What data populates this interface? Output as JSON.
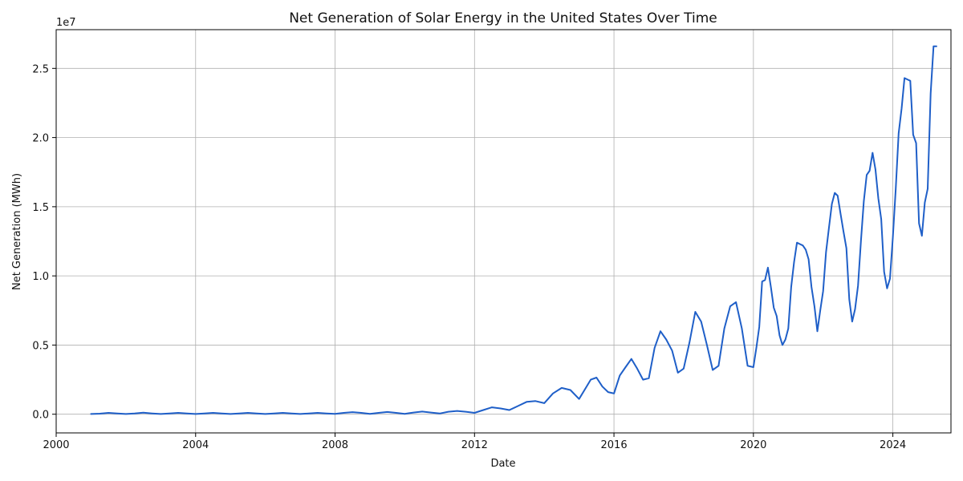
{
  "chart_data": {
    "type": "line",
    "title": "Net Generation of Solar Energy in the United States Over Time",
    "xlabel": "Date",
    "ylabel": "Net Generation (MWh)",
    "y_offset_label": "1e7",
    "y_scale_factor": 10000000,
    "xlim": [
      "2000-01-01",
      "2025-09-01"
    ],
    "ylim": [
      -1350000,
      27800000
    ],
    "grid": true,
    "line_color": "#1f5fc8",
    "x_ticks": [
      "2000",
      "2004",
      "2008",
      "2012",
      "2016",
      "2020",
      "2024"
    ],
    "y_ticks": [
      "0.0",
      "0.5",
      "1.0",
      "1.5",
      "2.0",
      "2.5"
    ],
    "series": [
      {
        "name": "",
        "x": [
          "2001-01",
          "2001-04",
          "2001-07",
          "2001-10",
          "2002-01",
          "2002-04",
          "2002-07",
          "2002-10",
          "2003-01",
          "2003-04",
          "2003-07",
          "2003-10",
          "2004-01",
          "2004-04",
          "2004-07",
          "2004-10",
          "2005-01",
          "2005-04",
          "2005-07",
          "2005-10",
          "2006-01",
          "2006-04",
          "2006-07",
          "2006-10",
          "2007-01",
          "2007-04",
          "2007-07",
          "2007-10",
          "2008-01",
          "2008-04",
          "2008-07",
          "2008-10",
          "2009-01",
          "2009-04",
          "2009-07",
          "2009-10",
          "2010-01",
          "2010-04",
          "2010-07",
          "2010-10",
          "2011-01",
          "2011-04",
          "2011-07",
          "2011-10",
          "2012-01",
          "2012-04",
          "2012-07",
          "2012-10",
          "2013-01",
          "2013-04",
          "2013-07",
          "2013-10",
          "2014-01",
          "2014-04",
          "2014-07",
          "2014-10",
          "2015-01",
          "2015-03",
          "2015-05",
          "2015-07",
          "2015-09",
          "2015-11",
          "2016-01",
          "2016-03",
          "2016-05",
          "2016-07",
          "2016-09",
          "2016-11",
          "2017-01",
          "2017-03",
          "2017-05",
          "2017-07",
          "2017-09",
          "2017-11",
          "2018-01",
          "2018-03",
          "2018-05",
          "2018-07",
          "2018-09",
          "2018-11",
          "2019-01",
          "2019-03",
          "2019-05",
          "2019-07",
          "2019-09",
          "2019-11",
          "2020-01",
          "2020-02",
          "2020-03",
          "2020-04",
          "2020-05",
          "2020-06",
          "2020-07",
          "2020-08",
          "2020-09",
          "2020-10",
          "2020-11",
          "2020-12",
          "2021-01",
          "2021-02",
          "2021-03",
          "2021-04",
          "2021-05",
          "2021-06",
          "2021-07",
          "2021-08",
          "2021-09",
          "2021-10",
          "2021-11",
          "2021-12",
          "2022-01",
          "2022-02",
          "2022-03",
          "2022-04",
          "2022-05",
          "2022-06",
          "2022-07",
          "2022-08",
          "2022-09",
          "2022-10",
          "2022-11",
          "2022-12",
          "2023-01",
          "2023-02",
          "2023-03",
          "2023-04",
          "2023-05",
          "2023-06",
          "2023-07",
          "2023-08",
          "2023-09",
          "2023-10",
          "2023-11",
          "2023-12",
          "2024-01",
          "2024-02",
          "2024-03",
          "2024-04",
          "2024-05",
          "2024-06",
          "2024-07",
          "2024-08",
          "2024-09",
          "2024-10",
          "2024-11",
          "2024-12",
          "2025-01",
          "2025-02",
          "2025-03",
          "2025-04"
        ],
        "values": [
          20000,
          40000,
          100000,
          60000,
          20000,
          50000,
          110000,
          60000,
          20000,
          60000,
          100000,
          50000,
          20000,
          60000,
          100000,
          50000,
          20000,
          60000,
          100000,
          50000,
          20000,
          60000,
          100000,
          50000,
          20000,
          60000,
          100000,
          60000,
          30000,
          100000,
          150000,
          100000,
          30000,
          100000,
          160000,
          100000,
          30000,
          120000,
          190000,
          120000,
          50000,
          180000,
          240000,
          180000,
          100000,
          300000,
          500000,
          420000,
          300000,
          600000,
          900000,
          950000,
          800000,
          1500000,
          1900000,
          1750000,
          1100000,
          1800000,
          2500000,
          2650000,
          2000000,
          1600000,
          1500000,
          2800000,
          3400000,
          4000000,
          3300000,
          2500000,
          2600000,
          4800000,
          6000000,
          5400000,
          4600000,
          3000000,
          3300000,
          5200000,
          7400000,
          6700000,
          5000000,
          3200000,
          3500000,
          6200000,
          7800000,
          8100000,
          6200000,
          3500000,
          3400000,
          4800000,
          6300000,
          9600000,
          9700000,
          10600000,
          9200000,
          7700000,
          7100000,
          5700000,
          5000000,
          5400000,
          6200000,
          9200000,
          11000000,
          12400000,
          12300000,
          12200000,
          11900000,
          11200000,
          9200000,
          7800000,
          6000000,
          7500000,
          8900000,
          11700000,
          13500000,
          15200000,
          16000000,
          15800000,
          14500000,
          13200000,
          12000000,
          8300000,
          6700000,
          7600000,
          9300000,
          12500000,
          15400000,
          17300000,
          17600000,
          18900000,
          17700000,
          15600000,
          14100000,
          10300000,
          9100000,
          9800000,
          12800000,
          16300000,
          20300000,
          22100000,
          24300000,
          24200000,
          24100000,
          20200000,
          19600000,
          13800000,
          12900000,
          15300000,
          16300000,
          23200000,
          26600000,
          26600000
        ]
      }
    ]
  }
}
